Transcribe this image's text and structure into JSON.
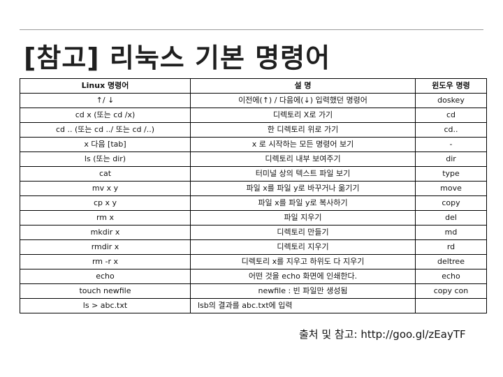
{
  "title": "[참고] 리눅스 기본 명령어",
  "table": {
    "headers": [
      "Linux 명령어",
      "설 명",
      "윈도우 명령"
    ],
    "rows": [
      [
        "↑/ ↓",
        "이전에(↑) / 다음에(↓) 입력했던 명령어",
        "doskey"
      ],
      [
        "cd x (또는 cd /x)",
        "디렉토리 X로 가기",
        "cd"
      ],
      [
        "cd .. (또는 cd ../ 또는 cd /..)",
        "한 디렉토리 위로 가기",
        "cd.."
      ],
      [
        "x 다음 [tab]",
        "x 로 시작하는 모든 명령어 보기",
        "-"
      ],
      [
        "ls (또는 dir)",
        "디렉토리 내부 보여주기",
        "dir"
      ],
      [
        "cat",
        "터미널 상의 텍스트 파일 보기",
        "type"
      ],
      [
        "mv x y",
        "파일 x를 파일 y로 바꾸거나 옮기기",
        "move"
      ],
      [
        "cp x y",
        "파일 x를 파일 y로 복사하기",
        "copy"
      ],
      [
        "rm x",
        "파일 지우기",
        "del"
      ],
      [
        "mkdir x",
        "디렉토리 만들기",
        "md"
      ],
      [
        "rmdir x",
        "디렉토리 지우기",
        "rd"
      ],
      [
        "rm -r x",
        "디렉토리 x를 지우고 하위도 다 지우기",
        "deltree"
      ],
      [
        "echo",
        "어떤 것을 echo 화면에 인쇄한다.",
        "echo"
      ],
      [
        "touch newfile",
        "newfile : 빈 파일만 생성됨",
        "copy con"
      ],
      [
        "ls > abc.txt",
        "lsb의 결과를 abc.txt에 입력",
        ""
      ]
    ]
  },
  "source": "출처 및 참고: http://goo.gl/zEayTF"
}
